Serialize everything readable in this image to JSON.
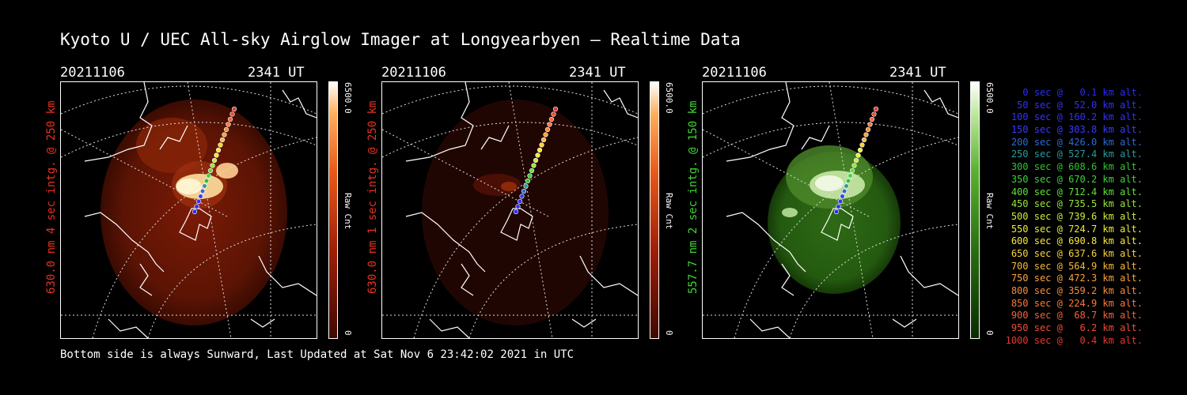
{
  "title": "Kyoto U / UEC All-sky Airglow Imager at Longyearbyen — Realtime Data",
  "footer": "Bottom side is always Sunward, Last Updated at Sat Nov  6 23:42:02 2021 in UTC",
  "colors": {
    "red_label": "#e8321e",
    "green_label": "#3fd832"
  },
  "panels": [
    {
      "date": "20211106",
      "time": "2341 UT",
      "side_label": "630.0 nm 4 sec intg. @ 250 km",
      "label_color": "#e8321e",
      "cbar_max": "6500.0",
      "cbar_unit": "Raw Cnt",
      "cbar_min": "0",
      "palette": "red",
      "brightness": 1.0
    },
    {
      "date": "20211106",
      "time": "2341 UT",
      "side_label": "630.0 nm 1 sec intg. @ 250 km",
      "label_color": "#e8321e",
      "cbar_max": "6500.0",
      "cbar_unit": "Raw Cnt",
      "cbar_min": "0",
      "palette": "red",
      "brightness": 0.35
    },
    {
      "date": "20211106",
      "time": "2341 UT",
      "side_label": "557.7 nm 2 sec intg. @ 150 km",
      "label_color": "#3fd832",
      "cbar_max": "6500.0",
      "cbar_unit": "Raw Cnt",
      "cbar_min": "0",
      "palette": "green",
      "brightness": 1.0
    }
  ],
  "legend": [
    {
      "text": "0 sec @   0.1 km alt.",
      "color": "#2a2aff"
    },
    {
      "text": "50 sec @  52.0 km alt.",
      "color": "#3030ff"
    },
    {
      "text": "100 sec @ 160.2 km alt.",
      "color": "#3030ff"
    },
    {
      "text": "150 sec @ 303.8 km alt.",
      "color": "#3a3aff"
    },
    {
      "text": "200 sec @ 426.0 km alt.",
      "color": "#2b6bd8"
    },
    {
      "text": "250 sec @ 527.4 km alt.",
      "color": "#2c9a9a"
    },
    {
      "text": "300 sec @ 608.6 km alt.",
      "color": "#2fc32f"
    },
    {
      "text": "350 sec @ 670.2 km alt.",
      "color": "#3ed23e"
    },
    {
      "text": "400 sec @ 712.4 km alt.",
      "color": "#5ee03a"
    },
    {
      "text": "450 sec @ 735.5 km alt.",
      "color": "#9ae63a"
    },
    {
      "text": "500 sec @ 739.6 km alt.",
      "color": "#c8ec3a"
    },
    {
      "text": "550 sec @ 724.7 km alt.",
      "color": "#e8ee3a"
    },
    {
      "text": "600 sec @ 690.8 km alt.",
      "color": "#f8e83a"
    },
    {
      "text": "650 sec @ 637.6 km alt.",
      "color": "#f8d23a"
    },
    {
      "text": "700 sec @ 564.9 km alt.",
      "color": "#f8b83a"
    },
    {
      "text": "750 sec @ 472.3 km alt.",
      "color": "#f8a23a"
    },
    {
      "text": "800 sec @ 359.2 km alt.",
      "color": "#f88c3a"
    },
    {
      "text": "850 sec @ 224.9 km alt.",
      "color": "#f8783a"
    },
    {
      "text": "900 sec @  68.7 km alt.",
      "color": "#f4623a"
    },
    {
      "text": "950 sec @   6.2 km alt.",
      "color": "#ee4c34"
    },
    {
      "text": "1000 sec @   0.4 km alt.",
      "color": "#e8362e"
    }
  ]
}
